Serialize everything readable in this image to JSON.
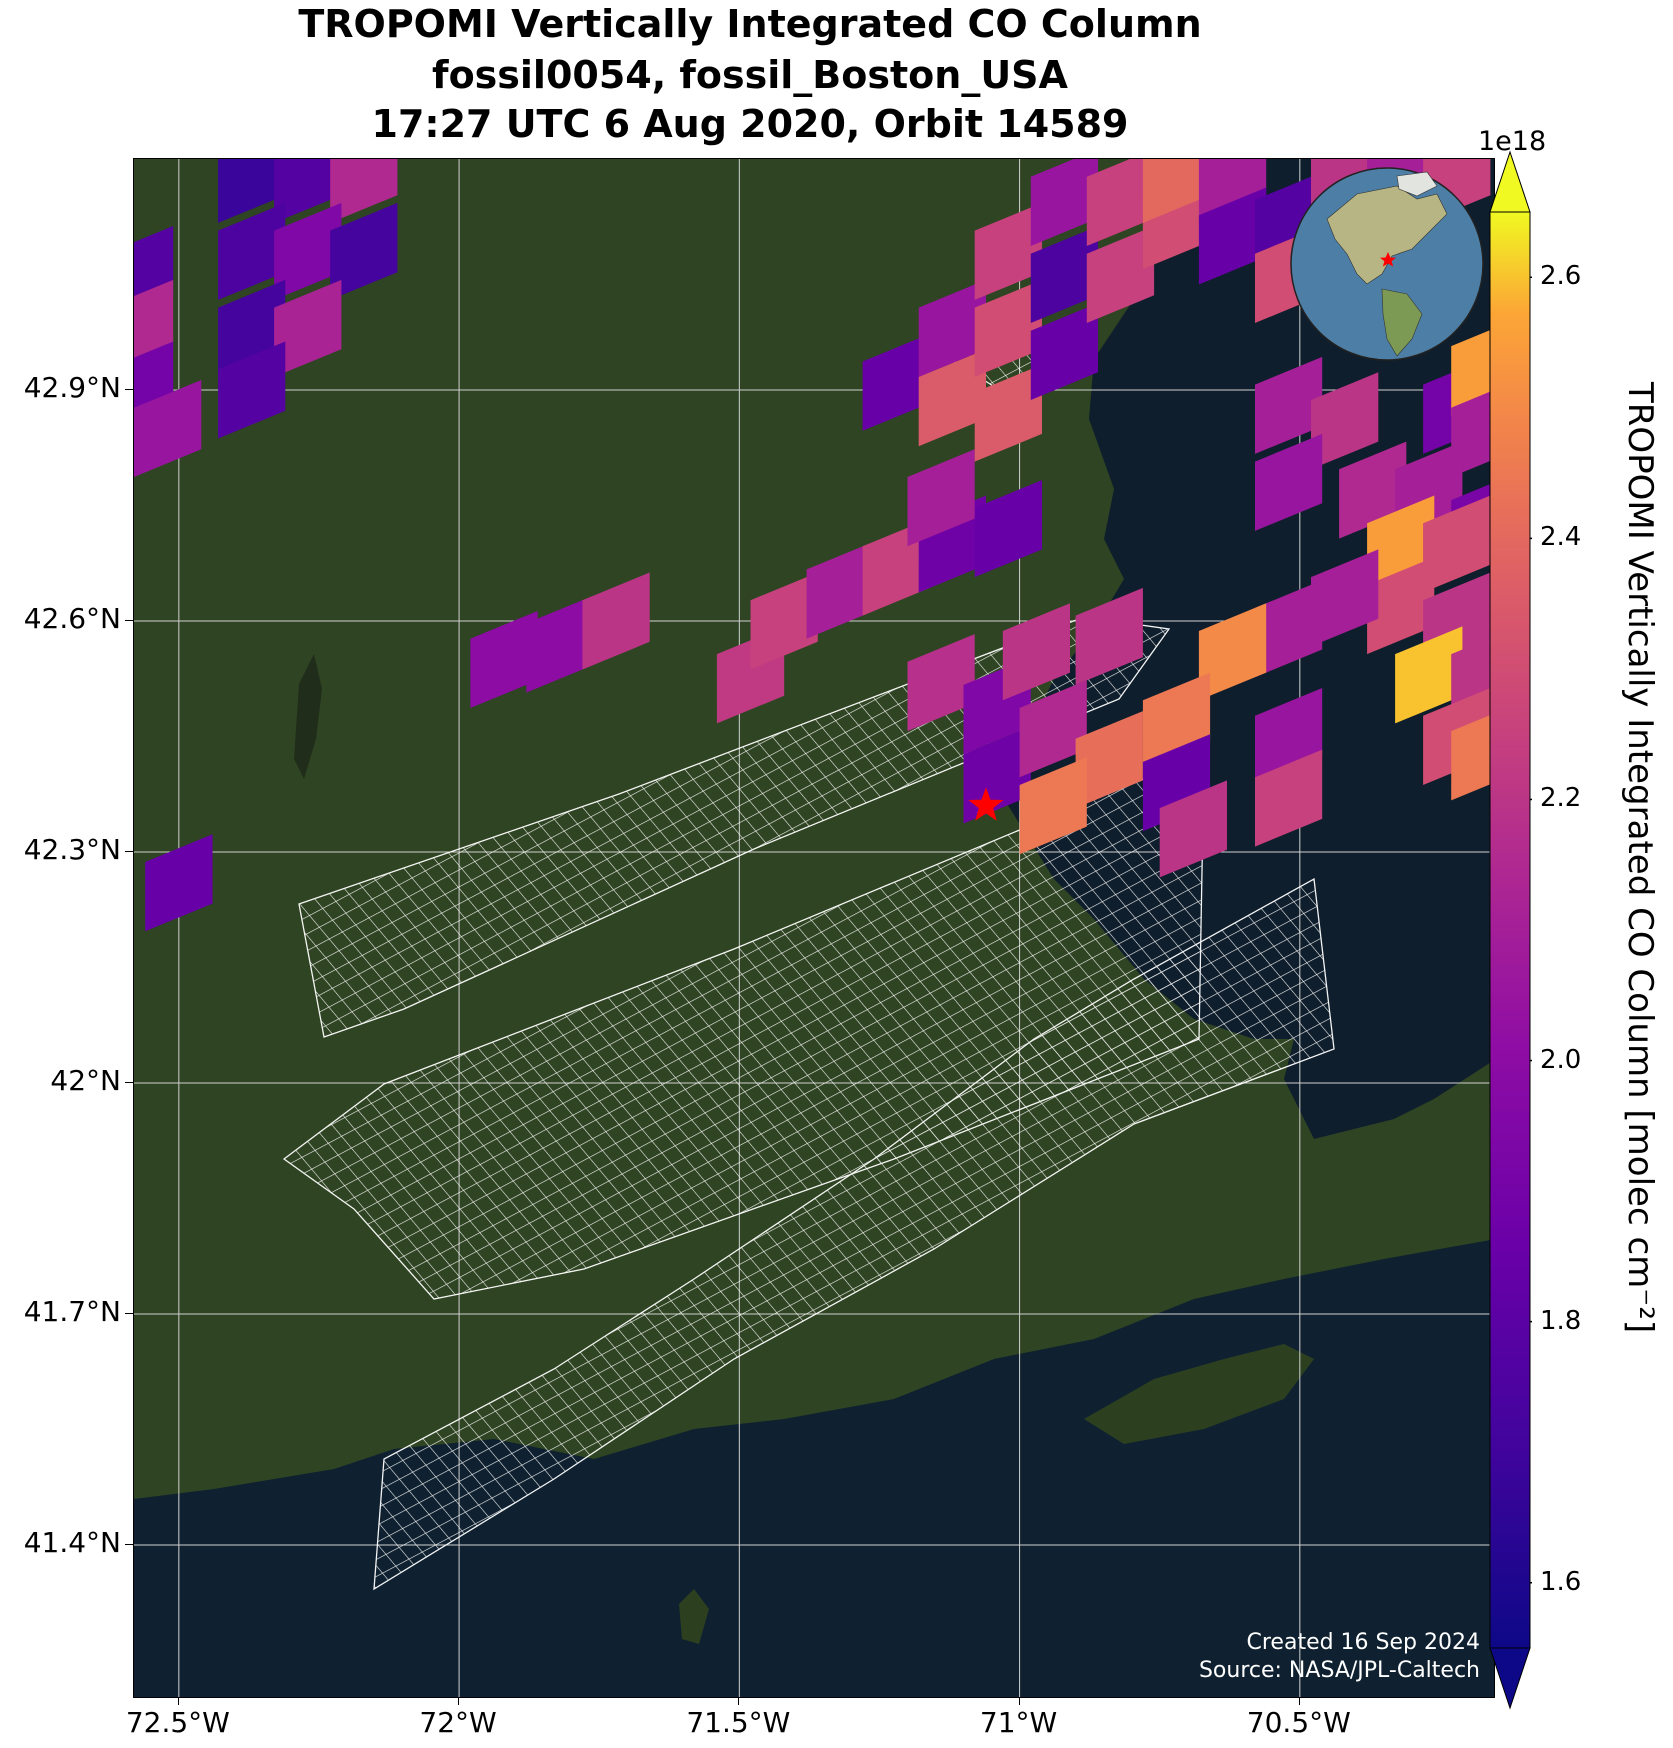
{
  "title": {
    "line1": "TROPOMI Vertically Integrated CO Column",
    "line2": "fossil0054, fossil_Boston_USA",
    "line3": "17:27 UTC 6 Aug 2020, Orbit 14589"
  },
  "map": {
    "lon_range": [
      -72.58,
      -70.15
    ],
    "lat_range": [
      41.2,
      43.2
    ],
    "lat_ticks": [
      {
        "value": 42.9,
        "label": "42.9°N"
      },
      {
        "value": 42.6,
        "label": "42.6°N"
      },
      {
        "value": 42.3,
        "label": "42.3°N"
      },
      {
        "value": 42.0,
        "label": "42°N"
      },
      {
        "value": 41.7,
        "label": "41.7°N"
      },
      {
        "value": 41.4,
        "label": "41.4°N"
      }
    ],
    "lon_ticks": [
      {
        "value": -72.5,
        "label": "72.5°W"
      },
      {
        "value": -72.0,
        "label": "72°W"
      },
      {
        "value": -71.5,
        "label": "71.5°W"
      },
      {
        "value": -71.0,
        "label": "71°W"
      },
      {
        "value": -70.5,
        "label": "70.5°W"
      }
    ],
    "site": {
      "name": "fossil_Boston_USA",
      "lon": -71.06,
      "lat": 42.36,
      "marker": "star-icon",
      "color": "#ff0000"
    },
    "colors": {
      "land": "#2f4422",
      "ocean": "#0f1e2c",
      "grid": "#d0d0d0",
      "swath_grid": "#ffffff"
    }
  },
  "credits": {
    "created": "Created 16 Sep 2024",
    "source": "Source: NASA/JPL-Caltech"
  },
  "colorbar": {
    "multiplier": "1e18",
    "title": "TROPOMI Vertically Integrated CO Column [molec cm⁻²]",
    "min": 1.55,
    "max": 2.65,
    "colormap": "plasma",
    "ticks": [
      {
        "value": 1.6,
        "label": "1.6"
      },
      {
        "value": 1.8,
        "label": "1.8"
      },
      {
        "value": 2.0,
        "label": "2.0"
      },
      {
        "value": 2.2,
        "label": "2.2"
      },
      {
        "value": 2.4,
        "label": "2.4"
      },
      {
        "value": 2.6,
        "label": "2.6"
      }
    ]
  },
  "chart_data": {
    "type": "heatmap",
    "units": "molec cm-2 (x1e18)",
    "pixels": [
      {
        "lon": -72.37,
        "lat": 43.18,
        "value": 1.68
      },
      {
        "lon": -72.27,
        "lat": 43.18,
        "value": 1.78
      },
      {
        "lon": -72.17,
        "lat": 43.18,
        "value": 2.15
      },
      {
        "lon": -72.37,
        "lat": 43.08,
        "value": 1.75
      },
      {
        "lon": -72.27,
        "lat": 43.08,
        "value": 1.95
      },
      {
        "lon": -72.17,
        "lat": 43.08,
        "value": 1.72
      },
      {
        "lon": -72.37,
        "lat": 42.98,
        "value": 1.72
      },
      {
        "lon": -72.27,
        "lat": 42.98,
        "value": 2.12
      },
      {
        "lon": -72.37,
        "lat": 42.9,
        "value": 1.78
      },
      {
        "lon": -72.57,
        "lat": 43.05,
        "value": 1.78
      },
      {
        "lon": -72.57,
        "lat": 42.98,
        "value": 2.15
      },
      {
        "lon": -72.57,
        "lat": 42.9,
        "value": 1.9
      },
      {
        "lon": -72.52,
        "lat": 42.85,
        "value": 2.05
      },
      {
        "lon": -72.5,
        "lat": 42.26,
        "value": 1.85
      },
      {
        "lon": -71.92,
        "lat": 42.55,
        "value": 2.0
      },
      {
        "lon": -71.82,
        "lat": 42.57,
        "value": 2.0
      },
      {
        "lon": -71.72,
        "lat": 42.6,
        "value": 2.2
      },
      {
        "lon": -71.48,
        "lat": 42.53,
        "value": 2.22
      },
      {
        "lon": -71.42,
        "lat": 42.6,
        "value": 2.25
      },
      {
        "lon": -71.32,
        "lat": 42.64,
        "value": 2.1
      },
      {
        "lon": -71.22,
        "lat": 42.67,
        "value": 2.25
      },
      {
        "lon": -71.12,
        "lat": 42.7,
        "value": 1.88
      },
      {
        "lon": -71.02,
        "lat": 42.72,
        "value": 1.85
      },
      {
        "lon": -71.14,
        "lat": 42.76,
        "value": 2.1
      },
      {
        "lon": -71.14,
        "lat": 42.52,
        "value": 2.18
      },
      {
        "lon": -71.04,
        "lat": 42.49,
        "value": 1.95
      },
      {
        "lon": -71.04,
        "lat": 42.4,
        "value": 1.88
      },
      {
        "lon": -70.94,
        "lat": 42.46,
        "value": 2.15
      },
      {
        "lon": -70.84,
        "lat": 42.42,
        "value": 2.42
      },
      {
        "lon": -70.94,
        "lat": 42.36,
        "value": 2.45
      },
      {
        "lon": -70.97,
        "lat": 42.56,
        "value": 2.2
      },
      {
        "lon": -70.84,
        "lat": 42.58,
        "value": 2.2
      },
      {
        "lon": -71.22,
        "lat": 42.91,
        "value": 1.85
      },
      {
        "lon": -71.12,
        "lat": 42.89,
        "value": 2.35
      },
      {
        "lon": -71.02,
        "lat": 42.87,
        "value": 2.35
      },
      {
        "lon": -71.12,
        "lat": 42.98,
        "value": 2.05
      },
      {
        "lon": -71.02,
        "lat": 42.98,
        "value": 2.3
      },
      {
        "lon": -70.92,
        "lat": 42.95,
        "value": 1.85
      },
      {
        "lon": -71.02,
        "lat": 43.08,
        "value": 2.25
      },
      {
        "lon": -70.92,
        "lat": 43.05,
        "value": 1.75
      },
      {
        "lon": -70.82,
        "lat": 43.05,
        "value": 2.25
      },
      {
        "lon": -70.92,
        "lat": 43.15,
        "value": 2.05
      },
      {
        "lon": -70.82,
        "lat": 43.15,
        "value": 2.25
      },
      {
        "lon": -70.72,
        "lat": 43.12,
        "value": 2.3
      },
      {
        "lon": -70.72,
        "lat": 43.18,
        "value": 2.4
      },
      {
        "lon": -70.62,
        "lat": 43.18,
        "value": 2.1
      },
      {
        "lon": -70.62,
        "lat": 43.1,
        "value": 1.85
      },
      {
        "lon": -70.52,
        "lat": 43.12,
        "value": 1.78
      },
      {
        "lon": -70.52,
        "lat": 43.05,
        "value": 2.3
      },
      {
        "lon": -70.42,
        "lat": 43.18,
        "value": 2.2
      },
      {
        "lon": -70.42,
        "lat": 43.08,
        "value": 2.35
      },
      {
        "lon": -70.32,
        "lat": 43.18,
        "value": 2.1
      },
      {
        "lon": -70.22,
        "lat": 43.18,
        "value": 2.25
      },
      {
        "lon": -70.52,
        "lat": 42.88,
        "value": 2.1
      },
      {
        "lon": -70.42,
        "lat": 42.86,
        "value": 2.2
      },
      {
        "lon": -70.52,
        "lat": 42.78,
        "value": 2.05
      },
      {
        "lon": -70.22,
        "lat": 42.88,
        "value": 1.9
      },
      {
        "lon": -70.17,
        "lat": 42.93,
        "value": 2.55
      },
      {
        "lon": -70.17,
        "lat": 42.85,
        "value": 2.1
      },
      {
        "lon": -70.37,
        "lat": 42.77,
        "value": 2.15
      },
      {
        "lon": -70.27,
        "lat": 42.77,
        "value": 2.1
      },
      {
        "lon": -70.17,
        "lat": 42.73,
        "value": 1.92
      },
      {
        "lon": -70.32,
        "lat": 42.7,
        "value": 2.55
      },
      {
        "lon": -70.22,
        "lat": 42.7,
        "value": 2.3
      },
      {
        "lon": -70.32,
        "lat": 42.62,
        "value": 2.3
      },
      {
        "lon": -70.42,
        "lat": 42.63,
        "value": 2.1
      },
      {
        "lon": -70.52,
        "lat": 42.59,
        "value": 2.1
      },
      {
        "lon": -70.62,
        "lat": 42.56,
        "value": 2.5
      },
      {
        "lon": -70.22,
        "lat": 42.6,
        "value": 2.2
      },
      {
        "lon": -70.27,
        "lat": 42.53,
        "value": 2.6
      },
      {
        "lon": -70.17,
        "lat": 42.53,
        "value": 2.2
      },
      {
        "lon": -70.22,
        "lat": 42.45,
        "value": 2.3
      },
      {
        "lon": -70.17,
        "lat": 42.43,
        "value": 2.45
      },
      {
        "lon": -70.52,
        "lat": 42.45,
        "value": 2.05
      },
      {
        "lon": -70.52,
        "lat": 42.37,
        "value": 2.25
      },
      {
        "lon": -70.72,
        "lat": 42.47,
        "value": 2.45
      },
      {
        "lon": -70.72,
        "lat": 42.39,
        "value": 1.85
      },
      {
        "lon": -70.69,
        "lat": 42.33,
        "value": 2.2
      }
    ]
  }
}
